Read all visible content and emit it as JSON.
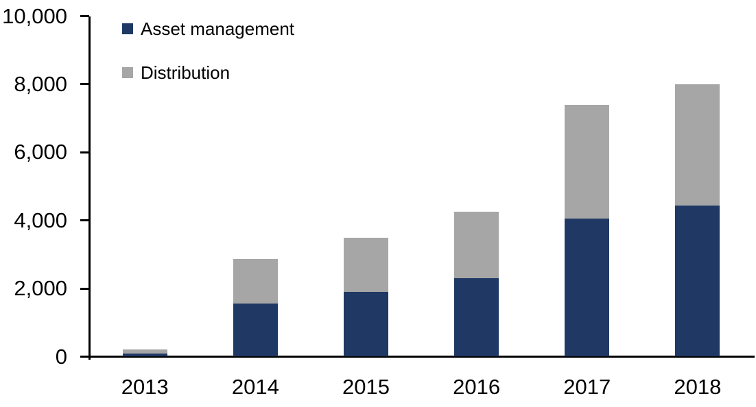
{
  "chart_data": {
    "type": "bar",
    "stacked": true,
    "title": "",
    "categories": [
      "2013",
      "2014",
      "2015",
      "2016",
      "2017",
      "2018"
    ],
    "series": [
      {
        "name": "Asset management",
        "color": "#1f3864",
        "values": [
          90,
          1560,
          1900,
          2310,
          4050,
          4430
        ]
      },
      {
        "name": "Distribution",
        "color": "#a6a6a6",
        "values": [
          120,
          1310,
          1600,
          1940,
          3350,
          3570
        ]
      }
    ],
    "stack_totals": [
      210,
      2870,
      3500,
      4250,
      7400,
      8000
    ],
    "xlabel": "",
    "ylabel": "",
    "ylim": [
      0,
      10000
    ],
    "ytick_interval": 2000,
    "ytick_labels": [
      "0",
      "2,000",
      "4,000",
      "6,000",
      "8,000",
      "10,000"
    ],
    "grid": false,
    "legend_position": "top-left",
    "axis_color": "#000000",
    "text_color": "#000000",
    "background_color": "#ffffff"
  }
}
